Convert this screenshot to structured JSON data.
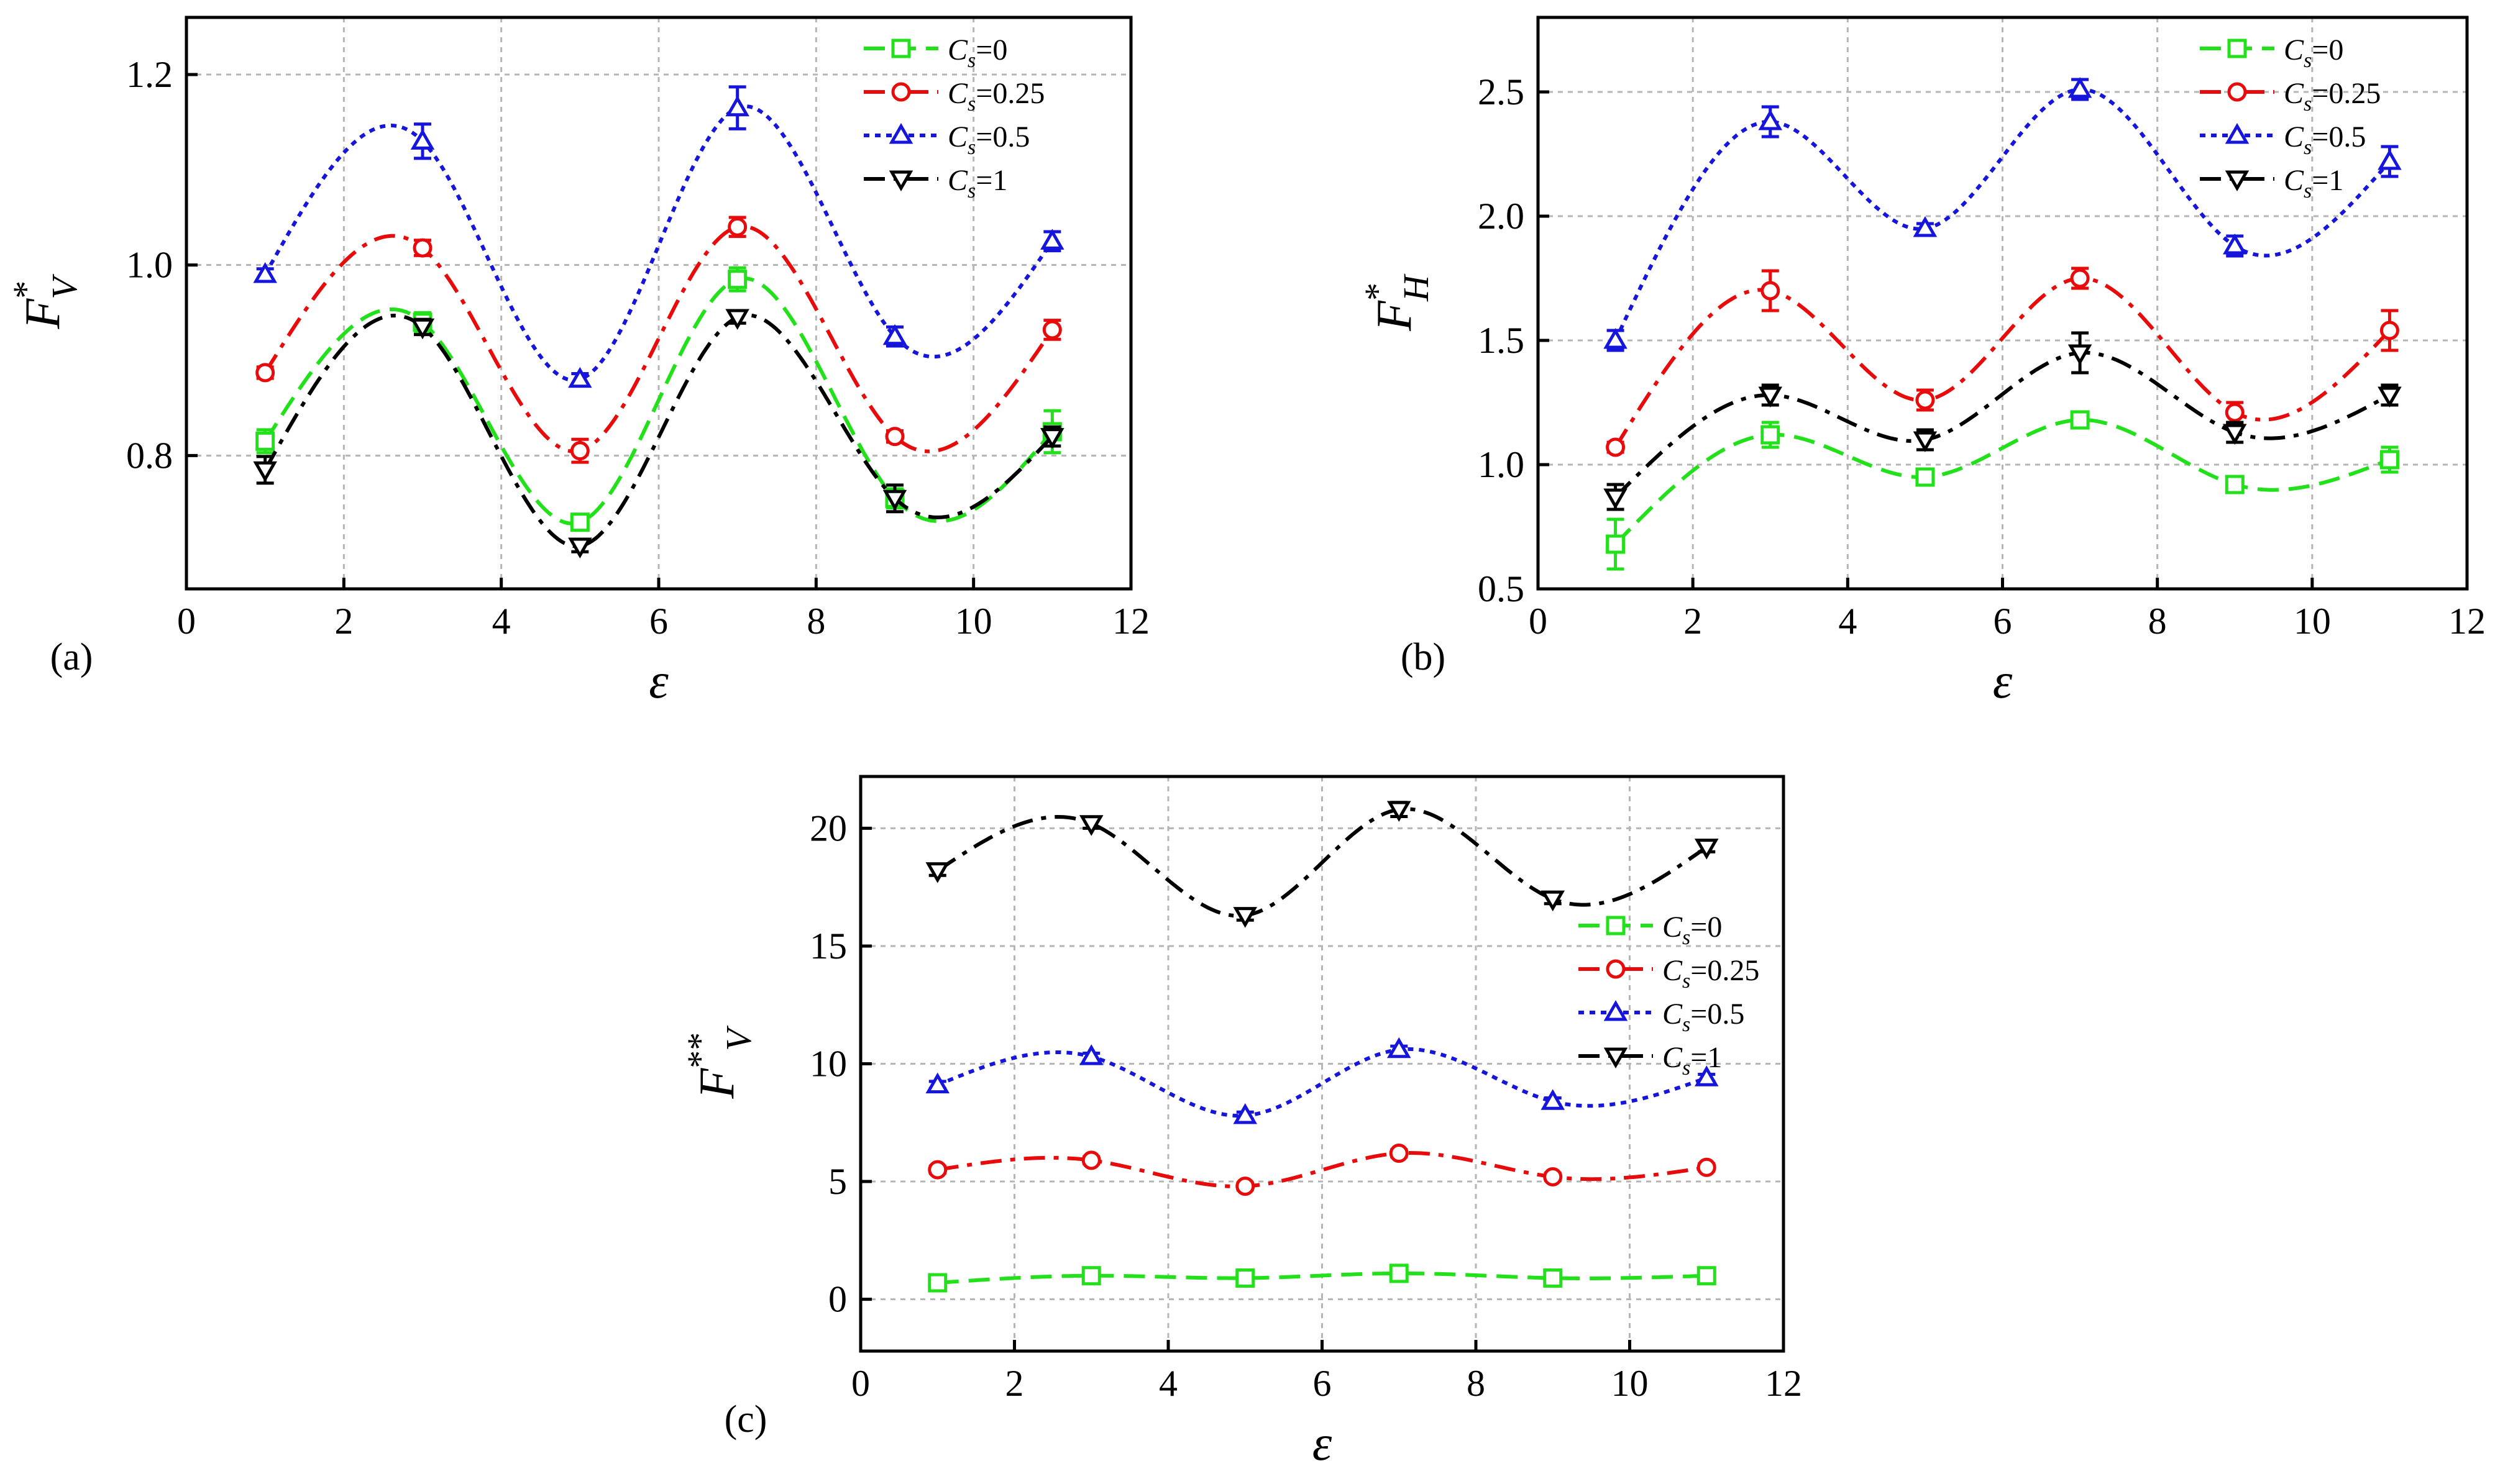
{
  "figure": {
    "x_symbol": "ε",
    "legend_symbol": "C",
    "legend_subscript": "s"
  },
  "chart_data": [
    {
      "type": "line",
      "panel_label": "(a)",
      "xlabel": "ε",
      "ylabel": {
        "base": "F",
        "sup": "*",
        "sub": "V"
      },
      "xlim": [
        0,
        12
      ],
      "ylim": [
        0.66,
        1.26
      ],
      "xticks": [
        0,
        2,
        4,
        6,
        8,
        10,
        12
      ],
      "yticks": [
        0.8,
        1.0,
        1.2
      ],
      "ytick_labels": [
        "0.8",
        "1.0",
        "1.2"
      ],
      "grid": true,
      "legend_position": "top-right",
      "x": [
        1,
        3,
        5,
        7,
        9,
        11
      ],
      "series": [
        {
          "name": "=0",
          "marker": "square",
          "dash": "dash",
          "color": "#22e01a",
          "values": [
            0.815,
            0.94,
            0.73,
            0.985,
            0.755,
            0.825
          ],
          "errors": [
            0.012,
            0.01,
            0.008,
            0.012,
            0.01,
            0.022
          ]
        },
        {
          "name": "=0.25",
          "marker": "circle",
          "dash": "dashdot",
          "color": "#e80b0b",
          "values": [
            0.887,
            1.018,
            0.805,
            1.04,
            0.82,
            0.932
          ],
          "errors": [
            0.006,
            0.008,
            0.012,
            0.01,
            0.006,
            0.01
          ]
        },
        {
          "name": "=0.5",
          "marker": "triangle-up",
          "dash": "dot",
          "color": "#1515dc",
          "values": [
            0.99,
            1.13,
            0.88,
            1.165,
            0.925,
            1.025
          ],
          "errors": [
            0.006,
            0.018,
            0.006,
            0.022,
            0.01,
            0.01
          ]
        },
        {
          "name": "=1",
          "marker": "triangle-down",
          "dash": "dashdot",
          "color": "#000000",
          "values": [
            0.785,
            0.935,
            0.705,
            0.945,
            0.755,
            0.82
          ],
          "errors": [
            0.014,
            0.008,
            0.006,
            0.006,
            0.014,
            0.01
          ]
        }
      ]
    },
    {
      "type": "line",
      "panel_label": "(b)",
      "xlabel": "ε",
      "ylabel": {
        "base": "F",
        "sup": "*",
        "sub": "H"
      },
      "xlim": [
        0,
        12
      ],
      "ylim": [
        0.5,
        2.8
      ],
      "xticks": [
        0,
        2,
        4,
        6,
        8,
        10,
        12
      ],
      "yticks": [
        0.5,
        1.0,
        1.5,
        2.0,
        2.5
      ],
      "ytick_labels": [
        "0.5",
        "1.0",
        "1.5",
        "2.0",
        "2.5"
      ],
      "grid": true,
      "legend_position": "top-right",
      "x": [
        1,
        3,
        5,
        7,
        9,
        11
      ],
      "series": [
        {
          "name": "=0",
          "marker": "square",
          "dash": "dash",
          "color": "#22e01a",
          "values": [
            0.68,
            1.12,
            0.95,
            1.18,
            0.92,
            1.02
          ],
          "errors": [
            0.1,
            0.05,
            0.02,
            0.03,
            0.02,
            0.05
          ]
        },
        {
          "name": "=0.25",
          "marker": "circle",
          "dash": "dashdot",
          "color": "#e80b0b",
          "values": [
            1.07,
            1.7,
            1.26,
            1.75,
            1.21,
            1.54
          ],
          "errors": [
            0.02,
            0.08,
            0.04,
            0.04,
            0.04,
            0.08
          ]
        },
        {
          "name": "=0.5",
          "marker": "triangle-up",
          "dash": "dot",
          "color": "#1515dc",
          "values": [
            1.5,
            2.38,
            1.95,
            2.51,
            1.88,
            2.22
          ],
          "errors": [
            0.04,
            0.06,
            0.02,
            0.04,
            0.04,
            0.06
          ]
        },
        {
          "name": "=1",
          "marker": "triangle-down",
          "dash": "dashdot",
          "color": "#000000",
          "values": [
            0.87,
            1.28,
            1.1,
            1.45,
            1.13,
            1.28
          ],
          "errors": [
            0.05,
            0.04,
            0.04,
            0.08,
            0.04,
            0.04
          ]
        }
      ]
    },
    {
      "type": "line",
      "panel_label": "(c)",
      "xlabel": "ε",
      "ylabel": {
        "base": "F",
        "sup": "**",
        "sub": "V"
      },
      "xlim": [
        0,
        12
      ],
      "ylim": [
        -2.2,
        22.2
      ],
      "xticks": [
        0,
        2,
        4,
        6,
        8,
        10,
        12
      ],
      "yticks": [
        0,
        5,
        10,
        15,
        20
      ],
      "ytick_labels": [
        "0",
        "5",
        "10",
        "15",
        "20"
      ],
      "grid": true,
      "legend_position": "right",
      "x": [
        1,
        3,
        5,
        7,
        9,
        11
      ],
      "series": [
        {
          "name": "=0",
          "marker": "square",
          "dash": "dash",
          "color": "#22e01a",
          "values": [
            0.7,
            1.0,
            0.9,
            1.1,
            0.9,
            1.0
          ],
          "errors": [
            0.15,
            0.15,
            0.15,
            0.15,
            0.15,
            0.15
          ]
        },
        {
          "name": "=0.25",
          "marker": "circle",
          "dash": "dashdot",
          "color": "#e80b0b",
          "values": [
            5.5,
            5.9,
            4.8,
            6.2,
            5.2,
            5.6
          ],
          "errors": [
            0.15,
            0.15,
            0.15,
            0.15,
            0.15,
            0.15
          ]
        },
        {
          "name": "=0.5",
          "marker": "triangle-up",
          "dash": "dot",
          "color": "#1515dc",
          "values": [
            9.1,
            10.3,
            7.8,
            10.6,
            8.4,
            9.4
          ],
          "errors": [
            0.15,
            0.15,
            0.15,
            0.15,
            0.15,
            0.15
          ]
        },
        {
          "name": "=1",
          "marker": "triangle-down",
          "dash": "dashdot",
          "color": "#000000",
          "values": [
            18.2,
            20.2,
            16.3,
            20.8,
            17.0,
            19.2
          ],
          "errors": [
            0.2,
            0.2,
            0.2,
            0.3,
            0.2,
            0.2
          ]
        }
      ]
    }
  ]
}
